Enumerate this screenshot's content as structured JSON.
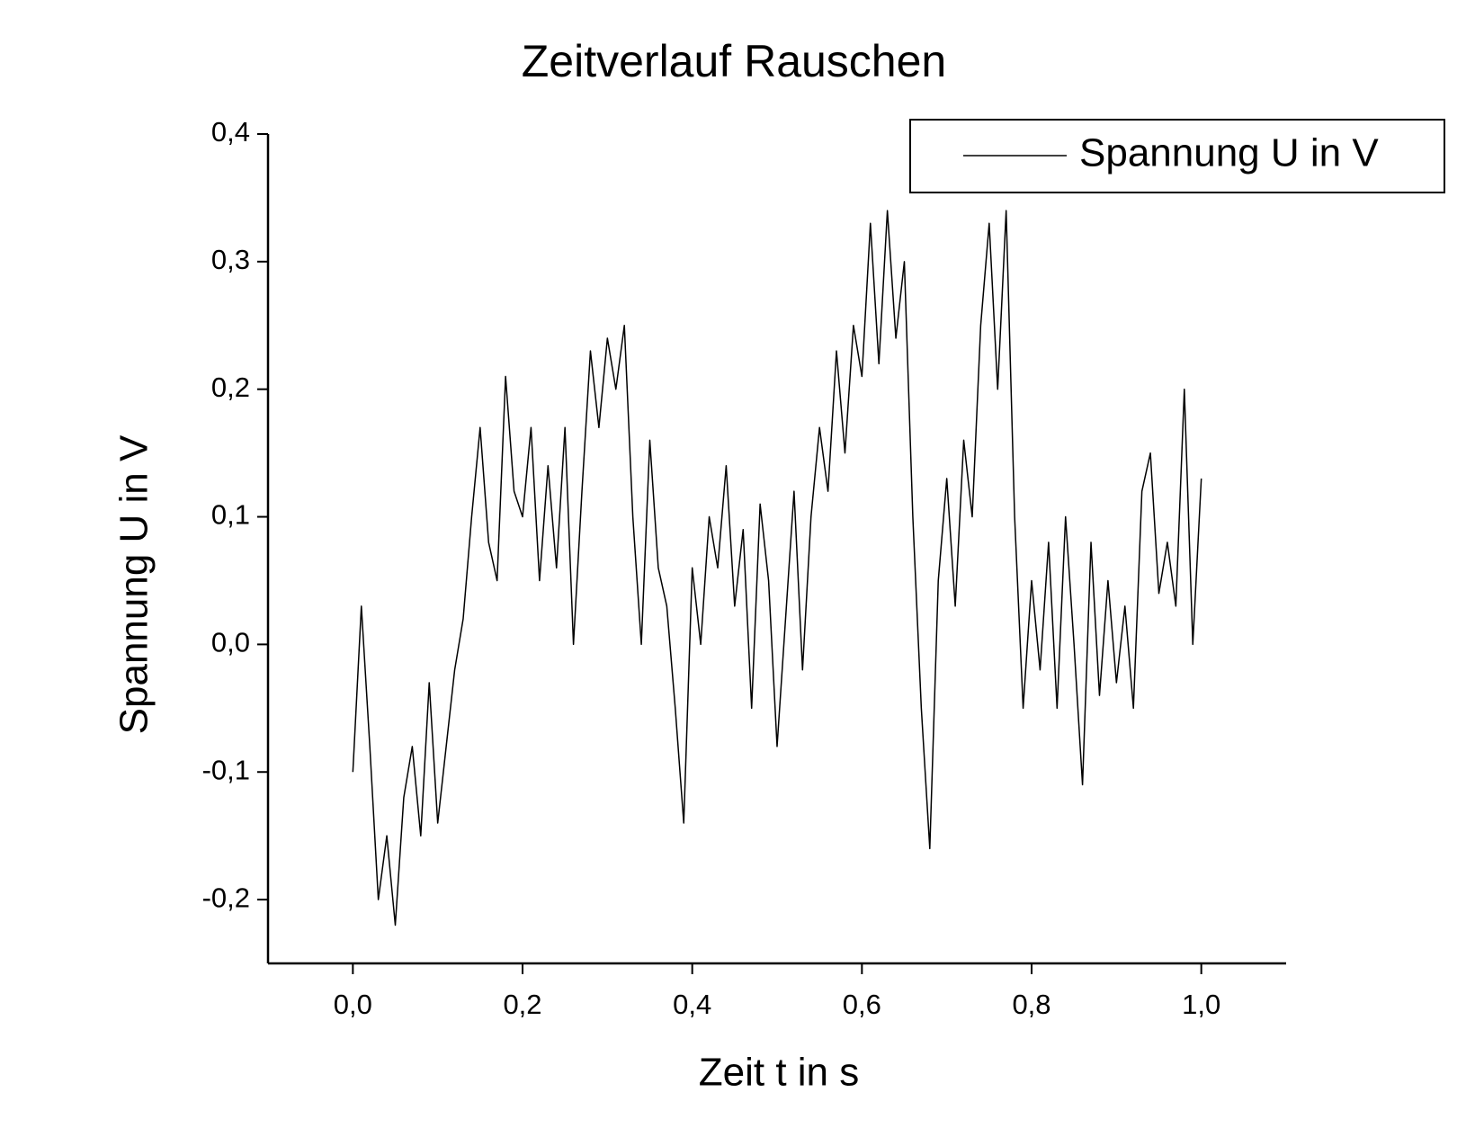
{
  "chart_data": {
    "type": "line",
    "title": "Zeitverlauf Rauschen",
    "x_label": "Zeit t in s",
    "y_label": "Spannung U in V",
    "x": [
      0,
      0.01,
      0.02,
      0.03,
      0.04,
      0.05,
      0.06,
      0.07,
      0.08,
      0.09,
      0.1,
      0.11,
      0.12,
      0.13,
      0.14,
      0.15,
      0.16,
      0.17,
      0.18,
      0.19,
      0.2,
      0.21,
      0.22,
      0.23,
      0.24,
      0.25,
      0.26,
      0.27,
      0.28,
      0.29,
      0.3,
      0.31,
      0.32,
      0.33,
      0.34,
      0.35,
      0.36,
      0.37,
      0.38,
      0.39,
      0.4,
      0.41,
      0.42,
      0.43,
      0.44,
      0.45,
      0.46,
      0.47,
      0.48,
      0.49,
      0.5,
      0.51,
      0.52,
      0.53,
      0.54,
      0.55,
      0.56,
      0.57,
      0.58,
      0.59,
      0.6,
      0.61,
      0.62,
      0.63,
      0.64,
      0.65,
      0.66,
      0.67,
      0.68,
      0.69,
      0.7,
      0.71,
      0.72,
      0.73,
      0.74,
      0.75,
      0.76,
      0.77,
      0.78,
      0.79,
      0.8,
      0.81,
      0.82,
      0.83,
      0.84,
      0.85,
      0.86,
      0.87,
      0.88,
      0.89,
      0.9,
      0.91,
      0.92,
      0.93,
      0.94,
      0.95,
      0.96,
      0.97,
      0.98,
      0.99,
      1.0
    ],
    "series": [
      {
        "name": "Spannung U in V",
        "color": "#000000",
        "values": [
          -0.1,
          0.03,
          -0.08,
          -0.2,
          -0.15,
          -0.22,
          -0.12,
          -0.08,
          -0.15,
          -0.03,
          -0.14,
          -0.08,
          -0.02,
          0.02,
          0.1,
          0.17,
          0.08,
          0.05,
          0.21,
          0.12,
          0.1,
          0.17,
          0.05,
          0.14,
          0.06,
          0.17,
          0.0,
          0.12,
          0.23,
          0.17,
          0.24,
          0.2,
          0.25,
          0.1,
          0.0,
          0.16,
          0.06,
          0.03,
          -0.05,
          -0.14,
          0.06,
          0.0,
          0.1,
          0.06,
          0.14,
          0.03,
          0.09,
          -0.05,
          0.11,
          0.05,
          -0.08,
          0.02,
          0.12,
          -0.02,
          0.1,
          0.17,
          0.12,
          0.23,
          0.15,
          0.25,
          0.21,
          0.33,
          0.22,
          0.34,
          0.24,
          0.3,
          0.1,
          -0.05,
          -0.16,
          0.05,
          0.13,
          0.03,
          0.16,
          0.1,
          0.25,
          0.33,
          0.2,
          0.34,
          0.1,
          -0.05,
          0.05,
          -0.02,
          0.08,
          -0.05,
          0.1,
          0.0,
          -0.11,
          0.08,
          -0.04,
          0.05,
          -0.03,
          0.03,
          -0.05,
          0.12,
          0.15,
          0.04,
          0.08,
          0.03,
          0.2,
          0.0,
          0.13
        ]
      }
    ],
    "xlim": [
      -0.1,
      1.1
    ],
    "ylim": [
      -0.25,
      0.4
    ],
    "xticks": [
      {
        "value": 0,
        "label": "0,0"
      },
      {
        "value": 0.2,
        "label": "0,2"
      },
      {
        "value": 0.4,
        "label": "0,4"
      },
      {
        "value": 0.6,
        "label": "0,6"
      },
      {
        "value": 0.8,
        "label": "0,8"
      },
      {
        "value": 1.0,
        "label": "1,0"
      }
    ],
    "yticks": [
      {
        "value": -0.2,
        "label": "-0,2"
      },
      {
        "value": -0.1,
        "label": "-0,1"
      },
      {
        "value": 0,
        "label": "0,0"
      },
      {
        "value": 0.1,
        "label": "0,1"
      },
      {
        "value": 0.2,
        "label": "0,2"
      },
      {
        "value": 0.3,
        "label": "0,3"
      },
      {
        "value": 0.4,
        "label": "0,4"
      }
    ],
    "legend": "top-right",
    "grid": false
  }
}
